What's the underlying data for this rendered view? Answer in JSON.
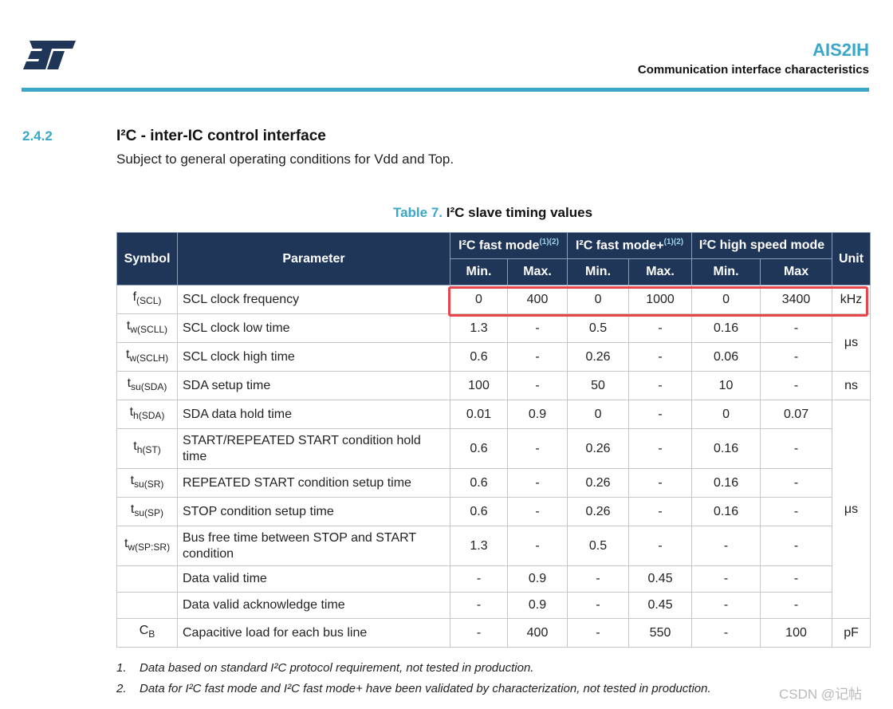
{
  "header": {
    "logo_text": "ST",
    "doc_title": "AIS2IH",
    "doc_subtitle": "Communication interface characteristics",
    "accent_color": "#3aa6c8"
  },
  "section": {
    "number": "2.4.2",
    "title": "I²C - inter-IC control interface",
    "text": "Subject to general operating conditions for Vdd and Top."
  },
  "table": {
    "caption_label": "Table 7.",
    "caption_title": "I²C slave timing values",
    "headers": {
      "symbol": "Symbol",
      "parameter": "Parameter",
      "unit": "Unit",
      "groups": [
        {
          "label": "I²C fast mode",
          "sup": "(1)(2)"
        },
        {
          "label": "I²C fast mode+",
          "sup": "(1)(2)"
        },
        {
          "label": "I²C high speed mode",
          "sup": ""
        }
      ],
      "sub": [
        "Min.",
        "Max.",
        "Min.",
        "Max.",
        "Min.",
        "Max"
      ]
    },
    "rows": [
      {
        "sym": "f",
        "sub": "(SCL)",
        "param": "SCL clock frequency",
        "v": [
          "0",
          "400",
          "0",
          "1000",
          "0",
          "3400"
        ],
        "unit": "kHz"
      },
      {
        "sym": "t",
        "sub": "w(SCLL)",
        "param": "SCL clock low time",
        "v": [
          "1.3",
          "-",
          "0.5",
          "-",
          "0.16",
          "-"
        ],
        "unit": "μs"
      },
      {
        "sym": "t",
        "sub": "w(SCLH)",
        "param": "SCL clock high time",
        "v": [
          "0.6",
          "-",
          "0.26",
          "-",
          "0.06",
          "-"
        ],
        "unit": ""
      },
      {
        "sym": "t",
        "sub": "su(SDA)",
        "param": "SDA setup time",
        "v": [
          "100",
          "-",
          "50",
          "-",
          "10",
          "-"
        ],
        "unit": "ns"
      },
      {
        "sym": "t",
        "sub": "h(SDA)",
        "param": "SDA data hold time",
        "v": [
          "0.01",
          "0.9",
          "0",
          "-",
          "0",
          "0.07"
        ],
        "unit": "μs"
      },
      {
        "sym": "t",
        "sub": "h(ST)",
        "param": "START/REPEATED START condition hold time",
        "v": [
          "0.6",
          "-",
          "0.26",
          "-",
          "0.16",
          "-"
        ],
        "unit": ""
      },
      {
        "sym": "t",
        "sub": "su(SR)",
        "param": "REPEATED START condition setup time",
        "v": [
          "0.6",
          "-",
          "0.26",
          "-",
          "0.16",
          "-"
        ],
        "unit": ""
      },
      {
        "sym": "t",
        "sub": "su(SP)",
        "param": "STOP condition setup time",
        "v": [
          "0.6",
          "-",
          "0.26",
          "-",
          "0.16",
          "-"
        ],
        "unit": ""
      },
      {
        "sym": "t",
        "sub": "w(SP:SR)",
        "param": "Bus free time between STOP and START condition",
        "v": [
          "1.3",
          "-",
          "0.5",
          "-",
          "-",
          "-"
        ],
        "unit": ""
      },
      {
        "sym": "",
        "sub": "",
        "param": "Data valid time",
        "v": [
          "-",
          "0.9",
          "-",
          "0.45",
          "-",
          "-"
        ],
        "unit": ""
      },
      {
        "sym": "",
        "sub": "",
        "param": "Data valid acknowledge time",
        "v": [
          "-",
          "0.9",
          "-",
          "0.45",
          "-",
          "-"
        ],
        "unit": ""
      },
      {
        "sym": "C",
        "sub": "B",
        "param": "Capacitive load for each bus line",
        "v": [
          "-",
          "400",
          "-",
          "550",
          "-",
          "100"
        ],
        "unit": "pF"
      }
    ]
  },
  "notes": [
    {
      "num": "1.",
      "text": "Data based on standard I²C protocol requirement, not tested in production."
    },
    {
      "num": "2.",
      "text": "Data for I²C fast mode and I²C fast mode+ have been validated by characterization, not tested in production."
    }
  ],
  "watermark": "CSDN @记帖"
}
